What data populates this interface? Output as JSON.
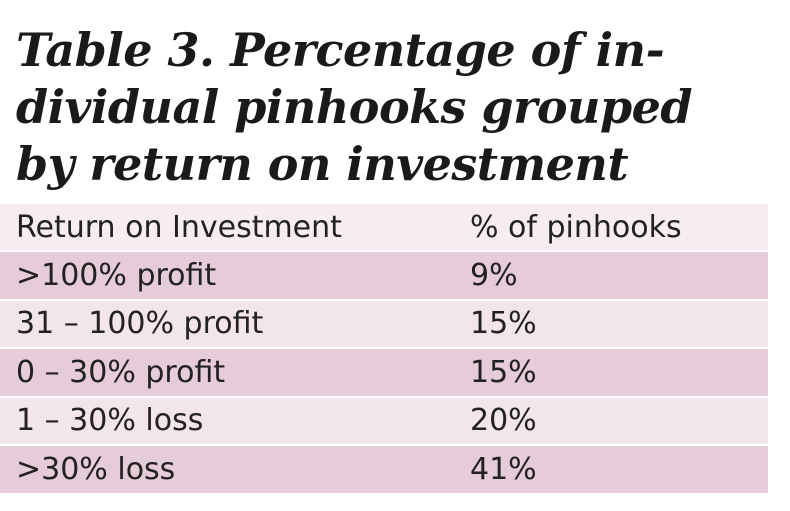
{
  "title": {
    "line1": "Table 3. Percentage of in-",
    "line2": "dividual pinhooks grouped",
    "line3": "by return on investment"
  },
  "table": {
    "headers": [
      "Return on Investment",
      "% of pinhooks"
    ],
    "rows": [
      [
        "&gt;100% profit",
        "9%"
      ],
      [
        "31 – 100% profit",
        "15%"
      ],
      [
        "0 – 30% profit",
        "15%"
      ],
      [
        "1 – 30% loss",
        "20%"
      ],
      [
        "&gt;30% loss",
        "41%"
      ]
    ]
  },
  "colors": {
    "header_bg": "#f7ecf1",
    "row_dark": "#e6cbd8",
    "row_light": "#f3e5ec",
    "text": "#222222"
  }
}
